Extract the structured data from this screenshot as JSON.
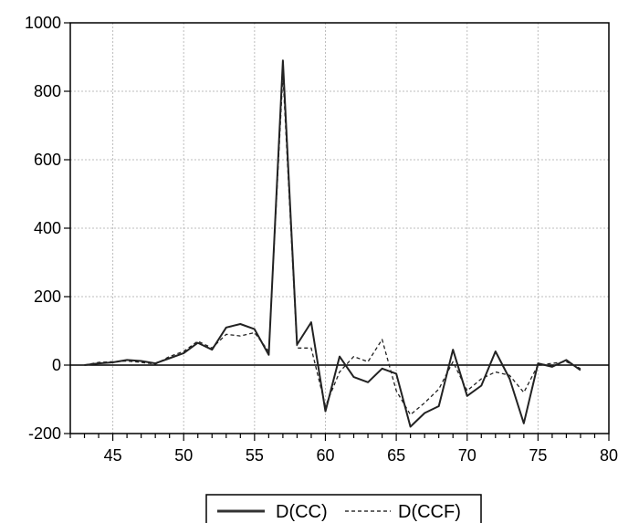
{
  "chart_data": {
    "type": "line",
    "title": "",
    "xlabel": "",
    "ylabel": "",
    "xlim": [
      42,
      80
    ],
    "ylim": [
      -200,
      1000
    ],
    "x_ticks": [
      45,
      50,
      55,
      60,
      65,
      70,
      75,
      80
    ],
    "y_ticks": [
      -200,
      0,
      200,
      400,
      600,
      800,
      1000
    ],
    "x_tick_labels": [
      "45",
      "50",
      "55",
      "60",
      "65",
      "70",
      "75",
      "80"
    ],
    "y_tick_labels": [
      "-200",
      "0",
      "200",
      "400",
      "600",
      "800",
      "1000"
    ],
    "grid": true,
    "legend_position": "bottom-center",
    "x": [
      43,
      44,
      45,
      46,
      47,
      48,
      49,
      50,
      51,
      52,
      53,
      54,
      55,
      56,
      57,
      58,
      59,
      60,
      61,
      62,
      63,
      64,
      65,
      66,
      67,
      68,
      69,
      70,
      71,
      72,
      73,
      74,
      75,
      76,
      77,
      78
    ],
    "series": [
      {
        "name": "D(CC)",
        "style": "solid",
        "color": "#222222",
        "values": [
          0,
          5,
          8,
          15,
          12,
          5,
          20,
          35,
          65,
          45,
          110,
          120,
          105,
          30,
          890,
          60,
          125,
          -135,
          25,
          -35,
          -50,
          -10,
          -25,
          -180,
          -140,
          -120,
          45,
          -90,
          -60,
          40,
          -40,
          -170,
          5,
          -5,
          15,
          -15
        ]
      },
      {
        "name": "D(CCF)",
        "style": "dashed",
        "color": "#222222",
        "values": [
          0,
          8,
          10,
          12,
          8,
          3,
          25,
          40,
          70,
          50,
          90,
          85,
          95,
          40,
          850,
          50,
          50,
          -120,
          -20,
          25,
          10,
          75,
          -75,
          -145,
          -110,
          -70,
          10,
          -75,
          -40,
          -20,
          -30,
          -80,
          0,
          5,
          10,
          -10
        ]
      }
    ]
  }
}
